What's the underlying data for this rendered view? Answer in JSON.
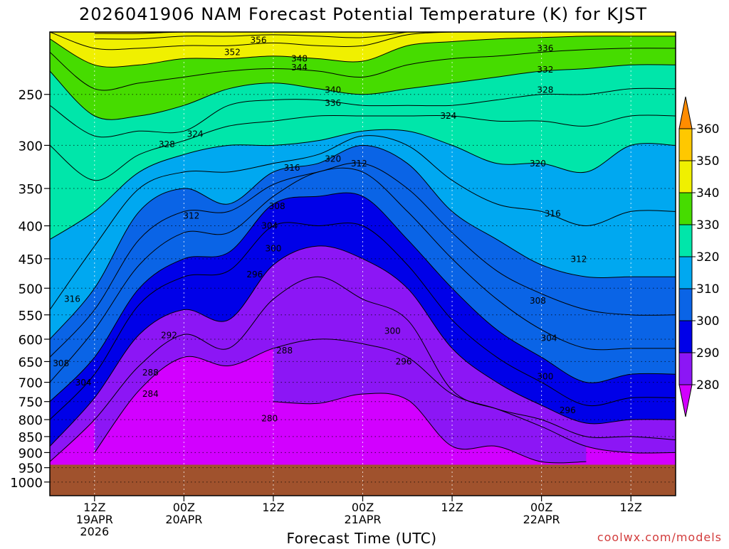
{
  "title": "2026041906 NAM Forecast Potential Temperature (K) for KJST",
  "watermark": "coolwx.com/models",
  "chart_data": {
    "type": "heatmap",
    "title": "2026041906 NAM Forecast Potential Temperature (K) for KJST",
    "xlabel": "Forecast Time (UTC)",
    "ylabel": "",
    "x_unit": "forecast hour",
    "xlim": [
      0,
      84
    ],
    "ylim_hPa": [
      1050,
      200
    ],
    "y_scale": "log",
    "y_ticks": [
      250,
      300,
      350,
      400,
      450,
      500,
      550,
      600,
      650,
      700,
      750,
      800,
      850,
      900,
      950,
      1000
    ],
    "x_ticks": [
      {
        "hour": 6,
        "lines": [
          "12Z",
          "19APR",
          "2026"
        ]
      },
      {
        "hour": 18,
        "lines": [
          "00Z",
          "20APR"
        ]
      },
      {
        "hour": 30,
        "lines": [
          "12Z"
        ]
      },
      {
        "hour": 42,
        "lines": [
          "00Z",
          "21APR"
        ]
      },
      {
        "hour": 54,
        "lines": [
          "12Z"
        ]
      },
      {
        "hour": 66,
        "lines": [
          "00Z",
          "22APR"
        ]
      },
      {
        "hour": 78,
        "lines": [
          "12Z"
        ]
      }
    ],
    "grid": true,
    "surface_pressure_hPa": 940,
    "ground_color": "#a0522d",
    "contour_interval_K": 2,
    "color_bins": [
      {
        "min": 270,
        "max": 280,
        "color": "#d200ff"
      },
      {
        "min": 280,
        "max": 290,
        "color": "#8c16f5"
      },
      {
        "min": 290,
        "max": 300,
        "color": "#0000e8"
      },
      {
        "min": 300,
        "max": 310,
        "color": "#0a64e6"
      },
      {
        "min": 310,
        "max": 320,
        "color": "#00a8f0"
      },
      {
        "min": 320,
        "max": 330,
        "color": "#00e6aa"
      },
      {
        "min": 330,
        "max": 340,
        "color": "#46dc00"
      },
      {
        "min": 340,
        "max": 350,
        "color": "#f0f000"
      },
      {
        "min": 350,
        "max": 360,
        "color": "#ffc800"
      },
      {
        "min": 360,
        "max": 370,
        "color": "#ff8c00"
      }
    ],
    "colorbar_labels": [
      280,
      290,
      300,
      310,
      320,
      330,
      340,
      350,
      360
    ],
    "isentropes": [
      {
        "theta": 280,
        "p": [
          null,
          null,
          null,
          null,
          null,
          750,
          755,
          730,
          745,
          880,
          880,
          930,
          930,
          null,
          null
        ]
      },
      {
        "theta": 284,
        "p": [
          null,
          900,
          720,
          640,
          660,
          620,
          600,
          610,
          640,
          730,
          770,
          820,
          880,
          900,
          900
        ]
      },
      {
        "theta": 288,
        "p": [
          930,
          800,
          660,
          590,
          620,
          520,
          480,
          520,
          560,
          720,
          770,
          800,
          850,
          850,
          860
        ]
      },
      {
        "theta": 292,
        "p": [
          880,
          740,
          590,
          540,
          560,
          460,
          430,
          450,
          500,
          620,
          700,
          760,
          810,
          800,
          800
        ]
      },
      {
        "theta": 296,
        "p": [
          800,
          680,
          530,
          480,
          470,
          400,
          400,
          400,
          460,
          560,
          640,
          700,
          760,
          740,
          740
        ]
      },
      {
        "theta": 300,
        "p": [
          750,
          640,
          500,
          450,
          440,
          370,
          360,
          360,
          420,
          500,
          580,
          640,
          700,
          680,
          680
        ]
      },
      {
        "theta": 304,
        "p": [
          700,
          580,
          460,
          410,
          410,
          360,
          330,
          330,
          380,
          450,
          520,
          580,
          620,
          620,
          620
        ]
      },
      {
        "theta": 308,
        "p": [
          640,
          540,
          420,
          380,
          380,
          345,
          330,
          320,
          350,
          410,
          470,
          510,
          540,
          550,
          550
        ]
      },
      {
        "theta": 312,
        "p": [
          600,
          500,
          380,
          350,
          370,
          330,
          320,
          300,
          320,
          380,
          420,
          460,
          480,
          480,
          480
        ]
      },
      {
        "theta": 316,
        "p": [
          540,
          430,
          350,
          330,
          330,
          320,
          310,
          290,
          300,
          340,
          370,
          380,
          400,
          380,
          380
        ]
      },
      {
        "theta": 320,
        "p": [
          420,
          380,
          330,
          310,
          300,
          300,
          295,
          285,
          285,
          300,
          320,
          320,
          330,
          300,
          300
        ]
      },
      {
        "theta": 324,
        "p": [
          300,
          340,
          310,
          295,
          280,
          275,
          270,
          270,
          270,
          270,
          275,
          275,
          280,
          270,
          270
        ]
      },
      {
        "theta": 328,
        "p": [
          260,
          290,
          285,
          285,
          260,
          255,
          255,
          260,
          260,
          260,
          255,
          250,
          250,
          245,
          245
        ]
      },
      {
        "theta": 332,
        "p": [
          230,
          270,
          270,
          260,
          245,
          240,
          245,
          250,
          245,
          240,
          235,
          230,
          228,
          225,
          225
        ]
      },
      {
        "theta": 336,
        "p": [
          215,
          245,
          240,
          235,
          230,
          228,
          230,
          235,
          225,
          220,
          218,
          215,
          213,
          212,
          212
        ]
      },
      {
        "theta": 340,
        "p": [
          205,
          225,
          225,
          220,
          220,
          218,
          220,
          222,
          210,
          207,
          205,
          204,
          203,
          203,
          203
        ]
      },
      {
        "theta": 344,
        "p": [
          200,
          212,
          212,
          210,
          210,
          208,
          210,
          210,
          202,
          200,
          200,
          200,
          200,
          200,
          200
        ]
      },
      {
        "theta": 348,
        "p": [
          null,
          205,
          205,
          203,
          203,
          202,
          203,
          204,
          200,
          null,
          null,
          null,
          null,
          null,
          null
        ]
      },
      {
        "theta": 352,
        "p": [
          null,
          201,
          201,
          200,
          200,
          200,
          200,
          200,
          null,
          null,
          null,
          null,
          null,
          null,
          null
        ]
      }
    ],
    "isentrope_hours": [
      0,
      6,
      12,
      18,
      24,
      30,
      36,
      42,
      48,
      54,
      60,
      66,
      72,
      78,
      84
    ],
    "contour_labels": [
      {
        "text": "356",
        "hour": 28.0,
        "p": 206
      },
      {
        "text": "352",
        "hour": 24.5,
        "p": 215
      },
      {
        "text": "348",
        "hour": 33.5,
        "p": 220
      },
      {
        "text": "344",
        "hour": 33.5,
        "p": 227
      },
      {
        "text": "340",
        "hour": 38.0,
        "p": 246
      },
      {
        "text": "336",
        "hour": 38.0,
        "p": 258
      },
      {
        "text": "336",
        "hour": 66.5,
        "p": 212
      },
      {
        "text": "332",
        "hour": 66.5,
        "p": 229
      },
      {
        "text": "328",
        "hour": 66.5,
        "p": 246
      },
      {
        "text": "324",
        "hour": 53.5,
        "p": 270
      },
      {
        "text": "324",
        "hour": 19.5,
        "p": 288
      },
      {
        "text": "328",
        "hour": 15.7,
        "p": 299
      },
      {
        "text": "320",
        "hour": 38.0,
        "p": 315
      },
      {
        "text": "312",
        "hour": 41.5,
        "p": 320
      },
      {
        "text": "320",
        "hour": 65.5,
        "p": 320
      },
      {
        "text": "316",
        "hour": 32.5,
        "p": 325
      },
      {
        "text": "308",
        "hour": 30.5,
        "p": 373
      },
      {
        "text": "316",
        "hour": 67.5,
        "p": 383
      },
      {
        "text": "312",
        "hour": 19.0,
        "p": 386
      },
      {
        "text": "304",
        "hour": 29.5,
        "p": 400
      },
      {
        "text": "300",
        "hour": 30.0,
        "p": 434
      },
      {
        "text": "312",
        "hour": 71.0,
        "p": 451
      },
      {
        "text": "296",
        "hour": 27.5,
        "p": 476
      },
      {
        "text": "316",
        "hour": 3.0,
        "p": 520
      },
      {
        "text": "308",
        "hour": 65.5,
        "p": 523
      },
      {
        "text": "300",
        "hour": 46.0,
        "p": 583
      },
      {
        "text": "292",
        "hour": 16.0,
        "p": 592
      },
      {
        "text": "304",
        "hour": 67.0,
        "p": 598
      },
      {
        "text": "288",
        "hour": 31.5,
        "p": 625
      },
      {
        "text": "296",
        "hour": 47.5,
        "p": 650
      },
      {
        "text": "308",
        "hour": 1.5,
        "p": 654
      },
      {
        "text": "288",
        "hour": 13.5,
        "p": 676
      },
      {
        "text": "300",
        "hour": 66.5,
        "p": 686
      },
      {
        "text": "304",
        "hour": 4.5,
        "p": 701
      },
      {
        "text": "284",
        "hour": 13.5,
        "p": 730
      },
      {
        "text": "296",
        "hour": 69.5,
        "p": 774
      },
      {
        "text": "280",
        "hour": 29.5,
        "p": 797
      }
    ]
  }
}
